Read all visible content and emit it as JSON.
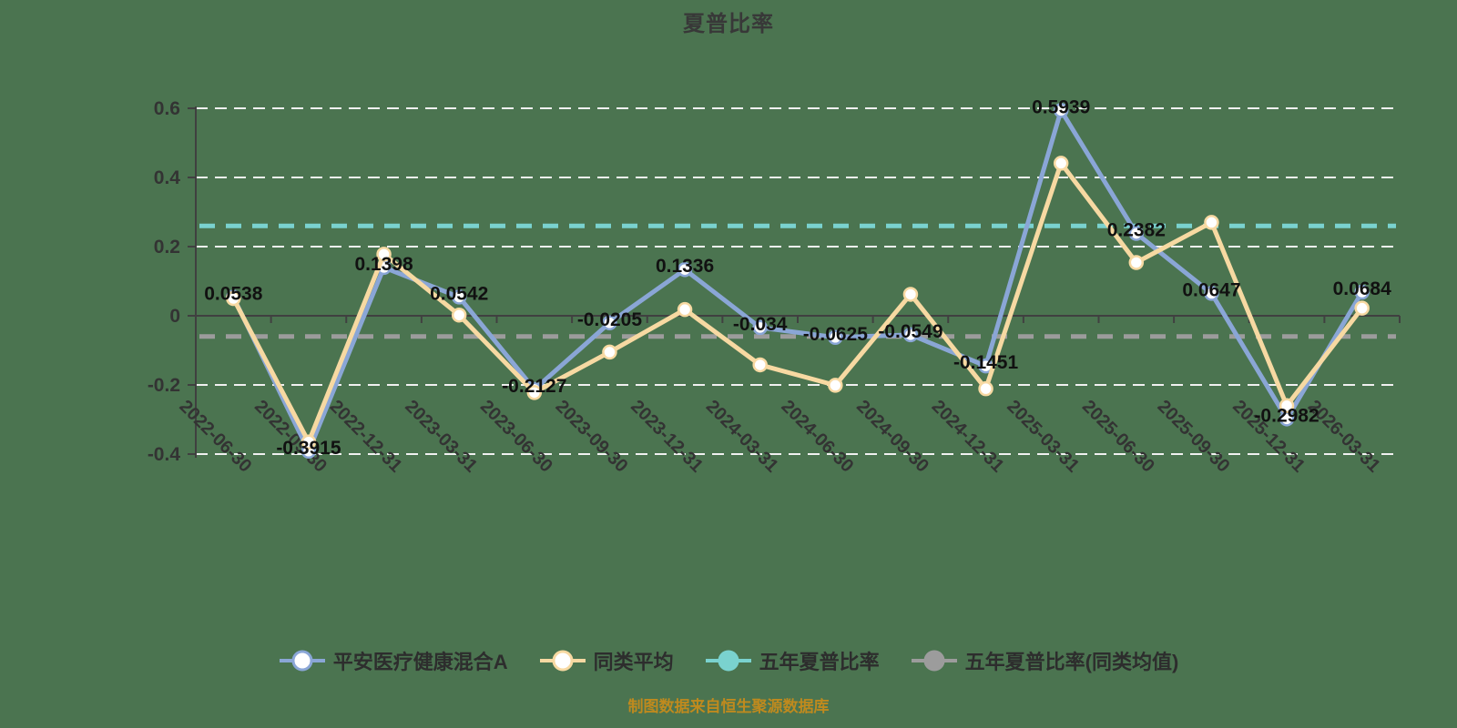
{
  "title": "夏普比率",
  "footer": "制图数据来自恒生聚源数据库",
  "colors": {
    "background": "#4b7450",
    "grid_line": "#f0f0f0",
    "axis_line": "#404040",
    "axis_text": "#333333",
    "data_label": "#111111",
    "title_text": "#383838",
    "legend_text": "#2d2d2d",
    "footer_text": "#bf8a1e",
    "marker_fill": "#ffffff"
  },
  "chart_data": {
    "type": "line",
    "title": "夏普比率",
    "categories": [
      "2022-06-30",
      "2022-09-30",
      "2022-12-31",
      "2023-03-31",
      "2023-06-30",
      "2023-09-30",
      "2023-12-31",
      "2024-03-31",
      "2024-06-30",
      "2024-09-30",
      "2024-12-31",
      "2025-03-31",
      "2025-06-30",
      "2025-09-30",
      "2025-12-31",
      "2026-03-31"
    ],
    "series": [
      {
        "name": "平安医疗健康混合A",
        "color": "#8aa6d6",
        "values": [
          0.0538,
          -0.3915,
          0.1398,
          0.0542,
          -0.2127,
          -0.0205,
          0.1336,
          -0.034,
          -0.0625,
          -0.0549,
          -0.1451,
          0.5939,
          0.2382,
          0.0647,
          -0.2982,
          0.0684
        ],
        "labels": [
          "0.0538",
          "-0.3915",
          "0.1398",
          "0.0542",
          "-0.2127",
          "-0.0205",
          "0.1336",
          "-0.034",
          "-0.0625",
          "-0.0549",
          "-0.1451",
          "0.5939",
          "0.2382",
          "0.0647",
          "-0.2982",
          "0.0684"
        ]
      },
      {
        "name": "同类平均",
        "color": "#f7d9a2",
        "values": [
          0.05,
          -0.365,
          0.178,
          0.002,
          -0.222,
          -0.105,
          0.018,
          -0.142,
          -0.201,
          0.062,
          -0.211,
          0.441,
          0.154,
          0.27,
          -0.26,
          0.022
        ],
        "labels": []
      }
    ],
    "reference_lines": [
      {
        "name": "五年夏普比率",
        "value": 0.26,
        "color": "#7ad2cf"
      },
      {
        "name": "五年夏普比率(同类均值)",
        "value": -0.06,
        "color": "#9c9c9c"
      }
    ],
    "ylim": [
      -0.4,
      0.6
    ],
    "yticks": [
      0.6,
      0.4,
      0.2,
      0,
      -0.2,
      -0.4
    ],
    "grid": "horizontal-dashed-white",
    "legend_position": "bottom",
    "marker": "hollow-circle"
  },
  "legend": {
    "items": [
      {
        "label": "平安医疗健康混合A",
        "color": "#8aa6d6",
        "marker": "hollow-circle"
      },
      {
        "label": "同类平均",
        "color": "#f7d9a2",
        "marker": "hollow-circle"
      },
      {
        "label": "五年夏普比率",
        "color": "#7ad2cf",
        "marker": "solid-circle"
      },
      {
        "label": "五年夏普比率(同类均值)",
        "color": "#9c9c9c",
        "marker": "solid-circle"
      }
    ]
  }
}
